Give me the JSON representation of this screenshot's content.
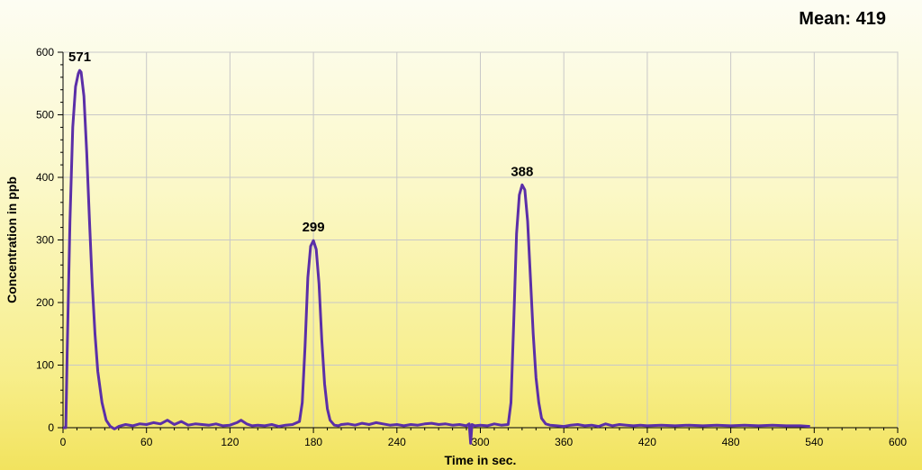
{
  "header": {
    "mean_label": "Mean: 419"
  },
  "chart_data": {
    "type": "line",
    "title": "",
    "xlabel": "Time in sec.",
    "ylabel": "Concentration in ppb",
    "xlim": [
      0,
      600
    ],
    "ylim": [
      0,
      600
    ],
    "x_ticks": [
      0,
      60,
      120,
      180,
      240,
      300,
      360,
      420,
      480,
      540,
      600
    ],
    "y_ticks": [
      0,
      100,
      200,
      300,
      400,
      500,
      600
    ],
    "grid": true,
    "line_color": "#5b2fa8",
    "peak_labels": [
      {
        "x": 12,
        "y": 571,
        "text": "571"
      },
      {
        "x": 180,
        "y": 299,
        "text": "299"
      },
      {
        "x": 330,
        "y": 388,
        "text": "388"
      }
    ],
    "series": [
      {
        "x": [
          0,
          2,
          3,
          5,
          7,
          9,
          11,
          12,
          13,
          15,
          17,
          19,
          21,
          23,
          25,
          28,
          31,
          34,
          37,
          40,
          45,
          50,
          55,
          60,
          65,
          70,
          75,
          80,
          85,
          90,
          95,
          100,
          105,
          110,
          115,
          120,
          125,
          128,
          132,
          136,
          140,
          145,
          150,
          155,
          160,
          165,
          170,
          172,
          174,
          176,
          178,
          180,
          182,
          184,
          186,
          188,
          190,
          192,
          195,
          198,
          200,
          205,
          210,
          215,
          220,
          225,
          230,
          235,
          240,
          245,
          250,
          255,
          260,
          265,
          270,
          275,
          280,
          285,
          290,
          292,
          293,
          294,
          296,
          300,
          305,
          310,
          315,
          320,
          322,
          324,
          326,
          328,
          330,
          332,
          334,
          336,
          338,
          340,
          342,
          344,
          347,
          350,
          355,
          360,
          365,
          370,
          375,
          380,
          385,
          390,
          395,
          400,
          405,
          410,
          415,
          420,
          430,
          440,
          450,
          460,
          470,
          480,
          490,
          500,
          510,
          520,
          530,
          537
        ],
        "y": [
          0,
          0,
          120,
          330,
          480,
          545,
          566,
          571,
          568,
          530,
          440,
          330,
          230,
          150,
          90,
          40,
          12,
          2,
          -2,
          2,
          5,
          3,
          6,
          5,
          8,
          6,
          12,
          5,
          10,
          4,
          6,
          5,
          4,
          6,
          3,
          4,
          8,
          12,
          6,
          3,
          4,
          3,
          5,
          2,
          4,
          5,
          10,
          40,
          130,
          240,
          290,
          299,
          285,
          230,
          140,
          70,
          30,
          12,
          4,
          3,
          5,
          6,
          4,
          7,
          5,
          8,
          6,
          4,
          5,
          3,
          5,
          4,
          6,
          7,
          5,
          6,
          4,
          5,
          3,
          6,
          -25,
          5,
          3,
          4,
          3,
          6,
          4,
          5,
          40,
          170,
          310,
          372,
          388,
          380,
          330,
          240,
          150,
          80,
          40,
          15,
          6,
          4,
          3,
          2,
          4,
          5,
          3,
          4,
          2,
          6,
          3,
          5,
          4,
          3,
          4,
          3,
          4,
          3,
          4,
          3,
          4,
          3,
          4,
          3,
          4,
          3,
          3,
          2
        ]
      }
    ]
  }
}
